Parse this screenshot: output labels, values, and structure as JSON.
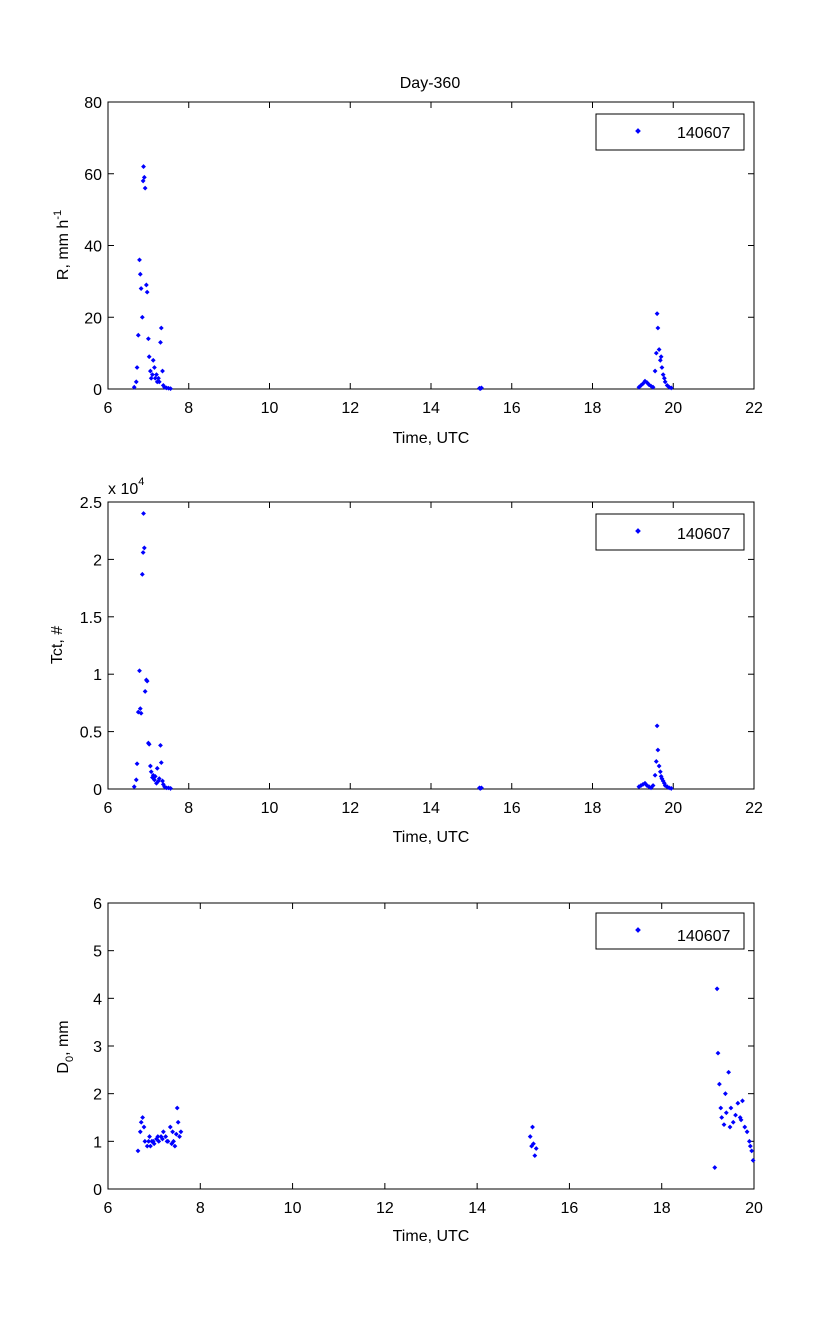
{
  "chart_data": [
    {
      "type": "scatter",
      "title": "Day-360",
      "xlabel": "Time, UTC",
      "ylabel": "R, mm h",
      "ylabel_sup": "-1",
      "xlim": [
        6,
        22
      ],
      "ylim": [
        0,
        80
      ],
      "xticks": [
        "6",
        "8",
        "10",
        "12",
        "14",
        "16",
        "18",
        "20",
        "22"
      ],
      "yticks": [
        "0",
        "20",
        "40",
        "60",
        "80"
      ],
      "legend": "top-right",
      "color": "#0000ff",
      "series": [
        {
          "name": "140607",
          "x": [
            6.65,
            6.7,
            6.72,
            6.75,
            6.78,
            6.8,
            6.82,
            6.85,
            6.87,
            6.88,
            6.9,
            6.92,
            6.95,
            6.97,
            7.0,
            7.02,
            7.05,
            7.07,
            7.1,
            7.12,
            7.15,
            7.17,
            7.2,
            7.22,
            7.25,
            7.27,
            7.3,
            7.32,
            7.35,
            7.37,
            7.4,
            7.45,
            7.5,
            7.55,
            15.2,
            15.22,
            15.25,
            19.15,
            19.2,
            19.25,
            19.3,
            19.35,
            19.4,
            19.45,
            19.5,
            19.55,
            19.58,
            19.6,
            19.62,
            19.65,
            19.68,
            19.7,
            19.72,
            19.75,
            19.78,
            19.8,
            19.85,
            19.9,
            19.95
          ],
          "y": [
            0.5,
            2,
            6,
            15,
            36,
            32,
            28,
            20,
            58,
            62,
            59,
            56,
            29,
            27,
            14,
            9,
            5,
            3,
            4,
            8,
            6,
            3,
            4,
            2,
            3,
            2,
            13,
            17,
            5,
            1,
            0.5,
            0.3,
            0.2,
            0.1,
            0.2,
            0.1,
            0.3,
            0.5,
            1,
            1.5,
            2.2,
            1.8,
            1.2,
            0.8,
            0.5,
            5,
            10,
            21,
            17,
            11,
            8,
            9,
            6,
            4,
            3,
            2,
            1,
            0.5,
            0.3
          ]
        }
      ]
    },
    {
      "type": "scatter",
      "xlabel": "Time, UTC",
      "ylabel": "Tct, #",
      "scale_note": "x 10",
      "scale_exp": "4",
      "xlim": [
        6,
        22
      ],
      "ylim": [
        0,
        25000
      ],
      "xticks": [
        "6",
        "8",
        "10",
        "12",
        "14",
        "16",
        "18",
        "20",
        "22"
      ],
      "yticks": [
        "0",
        "0.5",
        "1",
        "1.5",
        "2",
        "2.5"
      ],
      "legend": "top-right",
      "color": "#0000ff",
      "series": [
        {
          "name": "140607",
          "x": [
            6.65,
            6.7,
            6.72,
            6.75,
            6.78,
            6.8,
            6.82,
            6.85,
            6.87,
            6.88,
            6.9,
            6.92,
            6.95,
            6.97,
            7.0,
            7.02,
            7.05,
            7.07,
            7.1,
            7.12,
            7.15,
            7.17,
            7.2,
            7.22,
            7.25,
            7.27,
            7.3,
            7.32,
            7.35,
            7.37,
            7.4,
            7.45,
            7.5,
            7.55,
            15.2,
            15.22,
            15.25,
            19.15,
            19.2,
            19.25,
            19.3,
            19.35,
            19.4,
            19.45,
            19.5,
            19.55,
            19.58,
            19.6,
            19.62,
            19.65,
            19.68,
            19.7,
            19.72,
            19.75,
            19.78,
            19.8,
            19.85,
            19.9,
            19.95
          ],
          "y": [
            200,
            800,
            2200,
            6700,
            10300,
            7000,
            6600,
            18700,
            20600,
            24000,
            21000,
            8500,
            9500,
            9400,
            4000,
            3900,
            2000,
            1500,
            1000,
            1200,
            800,
            1100,
            500,
            1800,
            700,
            900,
            3800,
            2300,
            700,
            400,
            200,
            100,
            100,
            50,
            100,
            50,
            100,
            200,
            300,
            400,
            500,
            300,
            200,
            100,
            300,
            1200,
            2400,
            5500,
            3400,
            2000,
            1500,
            1100,
            900,
            700,
            500,
            300,
            200,
            100,
            50
          ]
        }
      ]
    },
    {
      "type": "scatter",
      "xlabel": "Time, UTC",
      "ylabel": "D",
      "ylabel_sub": "0",
      "ylabel_tail": ", mm",
      "xlim": [
        6,
        20
      ],
      "ylim": [
        0,
        6
      ],
      "xticks": [
        "6",
        "8",
        "10",
        "12",
        "14",
        "16",
        "18",
        "20"
      ],
      "yticks": [
        "0",
        "1",
        "2",
        "3",
        "4",
        "5",
        "6"
      ],
      "legend": "top-right",
      "color": "#0000ff",
      "series": [
        {
          "name": "140607",
          "x": [
            6.65,
            6.7,
            6.72,
            6.75,
            6.78,
            6.8,
            6.85,
            6.9,
            6.95,
            7.0,
            7.05,
            7.1,
            7.15,
            7.2,
            7.25,
            7.3,
            7.35,
            7.4,
            7.42,
            7.45,
            7.5,
            7.52,
            7.55,
            7.58,
            6.88,
            6.92,
            6.98,
            7.08,
            7.18,
            7.28,
            7.38,
            7.48,
            15.15,
            15.18,
            15.2,
            15.22,
            15.25,
            15.28,
            19.15,
            19.2,
            19.22,
            19.25,
            19.28,
            19.3,
            19.35,
            19.38,
            19.4,
            19.45,
            19.48,
            19.5,
            19.55,
            19.6,
            19.65,
            19.7,
            19.72,
            19.75,
            19.8,
            19.85,
            19.9,
            19.92,
            19.95,
            19.98
          ],
          "y": [
            0.8,
            1.2,
            1.4,
            1.5,
            1.3,
            1.0,
            0.9,
            1.1,
            1.0,
            0.95,
            1.05,
            1.0,
            1.1,
            1.2,
            1.1,
            1.0,
            1.3,
            1.2,
            1.0,
            0.9,
            1.7,
            1.4,
            1.1,
            1.2,
            1.0,
            0.9,
            1.0,
            1.1,
            1.05,
            1.0,
            0.95,
            1.15,
            1.1,
            0.9,
            1.3,
            0.95,
            0.7,
            0.85,
            0.45,
            4.2,
            2.85,
            2.2,
            1.7,
            1.5,
            1.35,
            2.0,
            1.6,
            2.45,
            1.3,
            1.7,
            1.4,
            1.55,
            1.8,
            1.5,
            1.45,
            1.85,
            1.3,
            1.2,
            1.0,
            0.9,
            0.8,
            0.6
          ]
        }
      ]
    }
  ]
}
